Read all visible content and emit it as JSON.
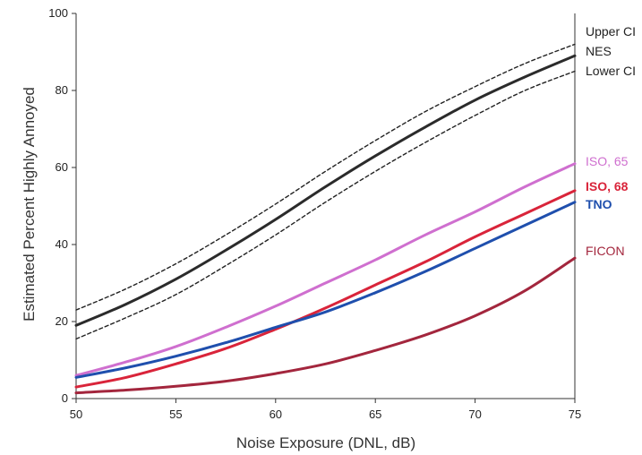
{
  "chart_data": {
    "type": "line",
    "title": "",
    "xlabel": "Noise Exposure (DNL, dB)",
    "ylabel": "Estimated Percent Highly Annoyed",
    "xlim": [
      50,
      75
    ],
    "ylim": [
      0,
      100
    ],
    "xticks": [
      50,
      55,
      60,
      65,
      70,
      75
    ],
    "yticks": [
      0,
      20,
      40,
      60,
      80,
      100
    ],
    "grid": false,
    "legend": "right-side direct labels",
    "series": [
      {
        "name": "Upper CI",
        "color": "#222222",
        "dash": true,
        "bold": false,
        "x": [
          50,
          52.5,
          55,
          57.5,
          60,
          62.5,
          65,
          67.5,
          70,
          72.5,
          75
        ],
        "y": [
          23,
          28.5,
          35,
          42.5,
          50.5,
          59,
          67,
          74.5,
          81,
          87,
          92
        ]
      },
      {
        "name": "NES",
        "color": "#2b2b2b",
        "dash": false,
        "bold": false,
        "x": [
          50,
          52.5,
          55,
          57.5,
          60,
          62.5,
          65,
          67.5,
          70,
          72.5,
          75
        ],
        "y": [
          19,
          24.5,
          31,
          38.5,
          46.5,
          55,
          63,
          70.5,
          77.5,
          83.5,
          89
        ]
      },
      {
        "name": "Lower CI",
        "color": "#222222",
        "dash": true,
        "bold": false,
        "x": [
          50,
          52.5,
          55,
          57.5,
          60,
          62.5,
          65,
          67.5,
          70,
          72.5,
          75
        ],
        "y": [
          15.5,
          21,
          27,
          34.5,
          42.5,
          51,
          59,
          66.5,
          73.5,
          80,
          85
        ]
      },
      {
        "name": "ISO, 65",
        "color": "#cf6fcf",
        "dash": false,
        "bold": false,
        "x": [
          50,
          52.5,
          55,
          57.5,
          60,
          62.5,
          65,
          67.5,
          70,
          72.5,
          75
        ],
        "y": [
          6,
          9.5,
          13.5,
          18.5,
          24,
          30,
          36,
          42.5,
          48.5,
          55,
          61
        ]
      },
      {
        "name": "ISO, 68",
        "color": "#d9243a",
        "dash": false,
        "bold": true,
        "x": [
          50,
          52.5,
          55,
          57.5,
          60,
          62.5,
          65,
          67.5,
          70,
          72.5,
          75
        ],
        "y": [
          3,
          5.5,
          9,
          13,
          18,
          23.5,
          29.5,
          35.5,
          42,
          48,
          54
        ]
      },
      {
        "name": "TNO",
        "color": "#1f4fad",
        "dash": false,
        "bold": true,
        "x": [
          50,
          52.5,
          55,
          57.5,
          60,
          62.5,
          65,
          67.5,
          70,
          72.5,
          75
        ],
        "y": [
          5.5,
          8,
          11,
          14.5,
          18.5,
          22.5,
          27.5,
          33,
          39,
          45,
          51
        ]
      },
      {
        "name": "FICON",
        "color": "#a3263d",
        "dash": false,
        "bold": false,
        "x": [
          50,
          52.5,
          55,
          57.5,
          60,
          62.5,
          65,
          67.5,
          70,
          72.5,
          75
        ],
        "y": [
          1.5,
          2.2,
          3.2,
          4.5,
          6.5,
          9,
          12.5,
          16.5,
          21.5,
          28,
          36.5
        ]
      }
    ]
  }
}
